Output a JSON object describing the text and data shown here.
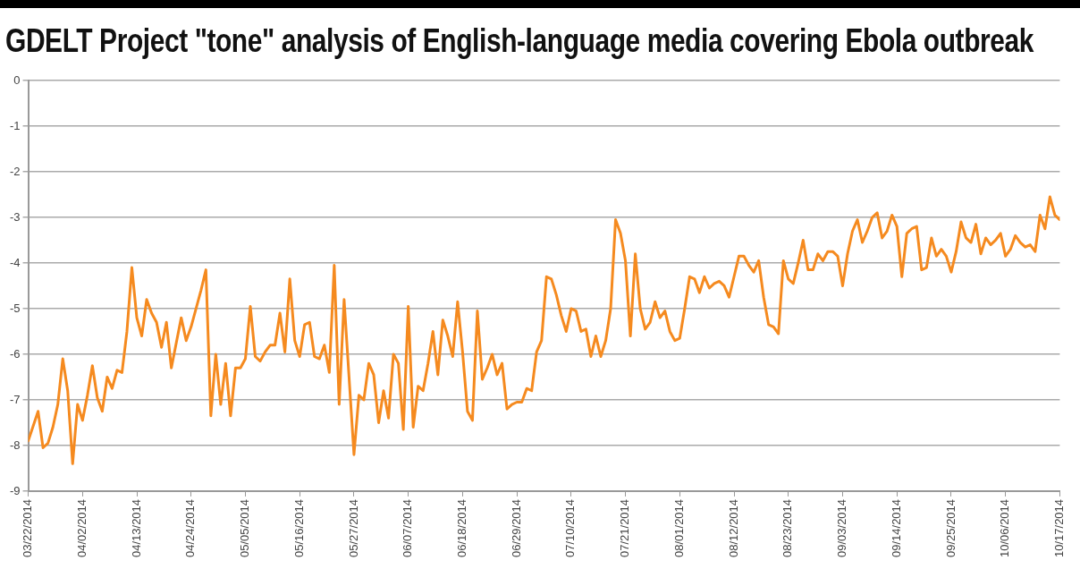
{
  "chart_data": {
    "type": "line",
    "title": "GDELT Project \"tone\" analysis of English-language media covering Ebola outbreak",
    "x": [
      "2014-03-22",
      "2014-03-24",
      "2014-03-25",
      "2014-03-26",
      "2014-03-27",
      "2014-03-28",
      "2014-03-29",
      "2014-03-30",
      "2014-03-31",
      "2014-04-01",
      "2014-04-02",
      "2014-04-03",
      "2014-04-04",
      "2014-04-05",
      "2014-04-06",
      "2014-04-07",
      "2014-04-08",
      "2014-04-09",
      "2014-04-10",
      "2014-04-11",
      "2014-04-12",
      "2014-04-13",
      "2014-04-14",
      "2014-04-15",
      "2014-04-16",
      "2014-04-17",
      "2014-04-18",
      "2014-04-19",
      "2014-04-20",
      "2014-04-22",
      "2014-04-23",
      "2014-04-24",
      "2014-04-26",
      "2014-04-27",
      "2014-04-28",
      "2014-04-29",
      "2014-04-30",
      "2014-05-01",
      "2014-05-02",
      "2014-05-03",
      "2014-05-04",
      "2014-05-05",
      "2014-05-06",
      "2014-05-07",
      "2014-05-08",
      "2014-05-09",
      "2014-05-10",
      "2014-05-11",
      "2014-05-12",
      "2014-05-13",
      "2014-05-14",
      "2014-05-15",
      "2014-05-16",
      "2014-05-17",
      "2014-05-18",
      "2014-05-19",
      "2014-05-20",
      "2014-05-21",
      "2014-05-22",
      "2014-05-23",
      "2014-05-24",
      "2014-05-25",
      "2014-05-26",
      "2014-05-27",
      "2014-05-28",
      "2014-05-29",
      "2014-05-30",
      "2014-05-31",
      "2014-06-01",
      "2014-06-02",
      "2014-06-03",
      "2014-06-04",
      "2014-06-05",
      "2014-06-06",
      "2014-06-07",
      "2014-06-08",
      "2014-06-09",
      "2014-06-10",
      "2014-06-11",
      "2014-06-12",
      "2014-06-13",
      "2014-06-14",
      "2014-06-15",
      "2014-06-16",
      "2014-06-17",
      "2014-06-18",
      "2014-06-19",
      "2014-06-20",
      "2014-06-21",
      "2014-06-22",
      "2014-06-23",
      "2014-06-24",
      "2014-06-25",
      "2014-06-26",
      "2014-06-27",
      "2014-06-28",
      "2014-06-29",
      "2014-06-30",
      "2014-07-01",
      "2014-07-02",
      "2014-07-03",
      "2014-07-04",
      "2014-07-05",
      "2014-07-06",
      "2014-07-07",
      "2014-07-08",
      "2014-07-09",
      "2014-07-10",
      "2014-07-11",
      "2014-07-12",
      "2014-07-13",
      "2014-07-14",
      "2014-07-15",
      "2014-07-16",
      "2014-07-17",
      "2014-07-18",
      "2014-07-19",
      "2014-07-20",
      "2014-07-21",
      "2014-07-22",
      "2014-07-23",
      "2014-07-24",
      "2014-07-25",
      "2014-07-26",
      "2014-07-27",
      "2014-07-28",
      "2014-07-29",
      "2014-07-30",
      "2014-07-31",
      "2014-08-01",
      "2014-08-02",
      "2014-08-03",
      "2014-08-04",
      "2014-08-05",
      "2014-08-06",
      "2014-08-07",
      "2014-08-08",
      "2014-08-09",
      "2014-08-10",
      "2014-08-11",
      "2014-08-12",
      "2014-08-13",
      "2014-08-14",
      "2014-08-15",
      "2014-08-16",
      "2014-08-17",
      "2014-08-18",
      "2014-08-19",
      "2014-08-20",
      "2014-08-21",
      "2014-08-22",
      "2014-08-23",
      "2014-08-24",
      "2014-08-25",
      "2014-08-26",
      "2014-08-27",
      "2014-08-28",
      "2014-08-29",
      "2014-08-30",
      "2014-08-31",
      "2014-09-01",
      "2014-09-02",
      "2014-09-03",
      "2014-09-04",
      "2014-09-05",
      "2014-09-06",
      "2014-09-07",
      "2014-09-08",
      "2014-09-09",
      "2014-09-10",
      "2014-09-11",
      "2014-09-12",
      "2014-09-13",
      "2014-09-14",
      "2014-09-15",
      "2014-09-16",
      "2014-09-17",
      "2014-09-18",
      "2014-09-19",
      "2014-09-20",
      "2014-09-21",
      "2014-09-22",
      "2014-09-23",
      "2014-09-24",
      "2014-09-25",
      "2014-09-26",
      "2014-09-27",
      "2014-09-28",
      "2014-09-29",
      "2014-09-30",
      "2014-10-01",
      "2014-10-02",
      "2014-10-03",
      "2014-10-04",
      "2014-10-05",
      "2014-10-06",
      "2014-10-07",
      "2014-10-08",
      "2014-10-09",
      "2014-10-10",
      "2014-10-11",
      "2014-10-12",
      "2014-10-13",
      "2014-10-14",
      "2014-10-15",
      "2014-10-16",
      "2014-10-17"
    ],
    "series": [
      {
        "color": "#f58a1f",
        "values": [
          -7.9,
          -7.25,
          -8.05,
          -7.95,
          -7.6,
          -7.1,
          -6.1,
          -6.8,
          -8.4,
          -7.1,
          -7.45,
          -6.9,
          -6.25,
          -6.95,
          -7.25,
          -6.5,
          -6.75,
          -6.35,
          -6.4,
          -5.5,
          -4.1,
          -5.2,
          -5.6,
          -4.8,
          -5.1,
          -5.3,
          -5.85,
          -5.3,
          -6.3,
          -5.2,
          -5.7,
          -5.4,
          -4.6,
          -4.15,
          -7.35,
          -6.0,
          -7.1,
          -6.2,
          -7.35,
          -6.3,
          -6.3,
          -6.1,
          -4.95,
          -6.05,
          -6.15,
          -5.95,
          -5.8,
          -5.8,
          -5.1,
          -5.95,
          -4.35,
          -5.7,
          -6.05,
          -5.35,
          -5.3,
          -6.05,
          -6.1,
          -5.8,
          -6.4,
          -4.05,
          -7.1,
          -4.8,
          -6.5,
          -8.2,
          -6.9,
          -7.0,
          -6.2,
          -6.45,
          -7.5,
          -6.8,
          -7.4,
          -6.0,
          -6.2,
          -7.65,
          -4.95,
          -7.6,
          -6.7,
          -6.8,
          -6.2,
          -5.5,
          -6.45,
          -5.25,
          -5.6,
          -6.05,
          -4.85,
          -5.95,
          -7.25,
          -7.45,
          -5.05,
          -6.55,
          -6.3,
          -6.0,
          -6.45,
          -6.2,
          -7.2,
          -7.1,
          -7.05,
          -7.05,
          -6.75,
          -6.8,
          -5.95,
          -5.7,
          -4.3,
          -4.35,
          -4.7,
          -5.15,
          -5.5,
          -5.0,
          -5.05,
          -5.5,
          -5.45,
          -6.05,
          -5.6,
          -6.05,
          -5.7,
          -5.0,
          -3.05,
          -3.35,
          -3.95,
          -5.6,
          -3.8,
          -5.0,
          -5.45,
          -5.3,
          -4.85,
          -5.2,
          -5.05,
          -5.5,
          -5.7,
          -5.65,
          -5.0,
          -4.3,
          -4.35,
          -4.65,
          -4.3,
          -4.55,
          -4.45,
          -4.4,
          -4.5,
          -4.75,
          -4.3,
          -3.85,
          -3.85,
          -4.05,
          -4.2,
          -3.95,
          -4.75,
          -5.35,
          -5.4,
          -5.55,
          -3.95,
          -4.35,
          -4.45,
          -4.0,
          -3.5,
          -4.15,
          -4.15,
          -3.8,
          -3.95,
          -3.75,
          -3.75,
          -3.85,
          -4.5,
          -3.8,
          -3.3,
          -3.05,
          -3.55,
          -3.3,
          -3.0,
          -2.9,
          -3.45,
          -3.3,
          -2.95,
          -3.2,
          -4.3,
          -3.35,
          -3.25,
          -3.2,
          -4.15,
          -4.1,
          -3.45,
          -3.85,
          -3.7,
          -3.85,
          -4.2,
          -3.75,
          -3.1,
          -3.45,
          -3.55,
          -3.15,
          -3.8,
          -3.45,
          -3.6,
          -3.5,
          -3.35,
          -3.85,
          -3.7,
          -3.4,
          -3.55,
          -3.65,
          -3.6,
          -3.75,
          -2.95,
          -3.25,
          -2.55,
          -2.95,
          -3.05
        ]
      }
    ],
    "xlim": [
      "2014-03-22",
      "2014-10-17"
    ],
    "xticks": [
      {
        "value": "2014-03-22",
        "label": "03/22/2014"
      },
      {
        "value": "2014-04-02",
        "label": "04/02/2014"
      },
      {
        "value": "2014-04-13",
        "label": "04/13/2014"
      },
      {
        "value": "2014-04-24",
        "label": "04/24/2014"
      },
      {
        "value": "2014-05-05",
        "label": "05/05/2014"
      },
      {
        "value": "2014-05-16",
        "label": "05/16/2014"
      },
      {
        "value": "2014-05-27",
        "label": "05/27/2014"
      },
      {
        "value": "2014-06-07",
        "label": "06/07/2014"
      },
      {
        "value": "2014-06-18",
        "label": "06/18/2014"
      },
      {
        "value": "2014-06-29",
        "label": "06/29/2014"
      },
      {
        "value": "2014-07-10",
        "label": "07/10/2014"
      },
      {
        "value": "2014-07-21",
        "label": "07/21/2014"
      },
      {
        "value": "2014-08-01",
        "label": "08/01/2014"
      },
      {
        "value": "2014-08-12",
        "label": "08/12/2014"
      },
      {
        "value": "2014-08-23",
        "label": "08/23/2014"
      },
      {
        "value": "2014-09-03",
        "label": "09/03/2014"
      },
      {
        "value": "2014-09-14",
        "label": "09/14/2014"
      },
      {
        "value": "2014-09-25",
        "label": "09/25/2014"
      },
      {
        "value": "2014-10-06",
        "label": "10/06/2014"
      },
      {
        "value": "2014-10-17",
        "label": "10/17/2014"
      }
    ],
    "ylim": [
      -9,
      0
    ],
    "yticks": [
      -9,
      -8,
      -7,
      -6,
      -5,
      -4,
      -3,
      -2,
      -1,
      0
    ],
    "grid": "y",
    "legend": false,
    "marker": "none",
    "line_style": "solid"
  }
}
